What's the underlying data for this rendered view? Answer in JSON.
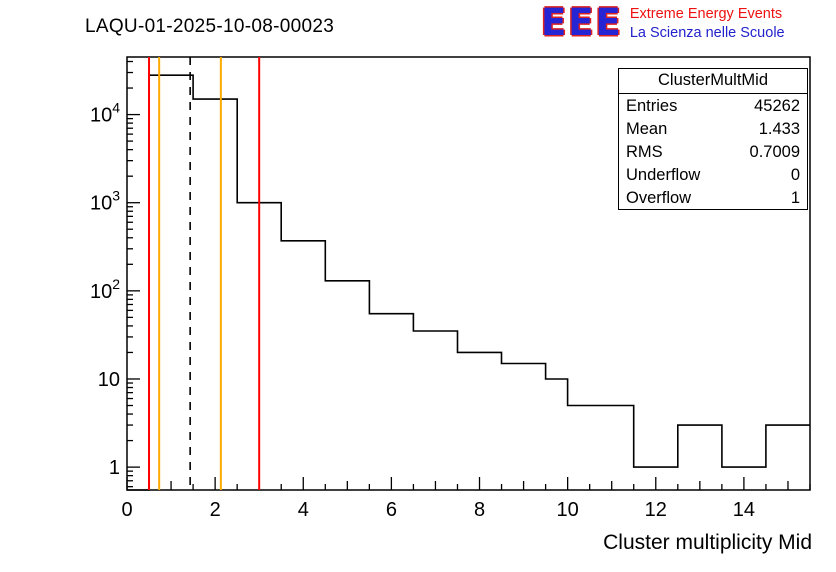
{
  "plot": {
    "title": "LAQU-01-2025-10-08-00023",
    "xlabel": "Cluster multiplicity Mid"
  },
  "logo": {
    "acronym": "EEE",
    "line1": "Extreme Energy Events",
    "line2": "La Scienza nelle Scuole",
    "acronym_color": "#2525d4",
    "acronym_outline_color": "#dd2222",
    "line1_color": "#ee1111",
    "line2_color": "#2222cc"
  },
  "stats": {
    "title": "ClusterMultMid",
    "rows": [
      {
        "label": "Entries",
        "value": "45262"
      },
      {
        "label": "Mean",
        "value": "1.433"
      },
      {
        "label": "RMS",
        "value": "0.7009"
      },
      {
        "label": "Underflow",
        "value": "0"
      },
      {
        "label": "Overflow",
        "value": "1"
      }
    ]
  },
  "chart_data": {
    "type": "bar",
    "subtype": "step-histogram",
    "title": "LAQU-01-2025-10-08-00023",
    "xlabel": "Cluster multiplicity Mid",
    "ylabel": "",
    "y_scale": "log",
    "x_range": [
      0,
      15.5
    ],
    "y_range": [
      0.55,
      45000
    ],
    "bin_start": 0,
    "bin_width": 0.5,
    "counts": [
      0,
      28000,
      28000,
      15000,
      15000,
      1000,
      1000,
      370,
      370,
      130,
      130,
      55,
      55,
      35,
      35,
      20,
      20,
      15,
      15,
      10,
      5,
      5,
      5,
      1,
      1,
      3,
      3,
      1,
      1,
      3,
      3
    ],
    "x_ticks": [
      0,
      2,
      4,
      6,
      8,
      10,
      12,
      14
    ],
    "y_ticks": [
      1,
      10,
      100,
      1000,
      10000
    ],
    "grid": false,
    "line_color": "#000000",
    "markers": [
      {
        "name": "red-line-low",
        "x": 0.5,
        "color": "#ff0000",
        "style": "solid"
      },
      {
        "name": "orange-line-low",
        "x": 0.73,
        "color": "#ffaa00",
        "style": "solid"
      },
      {
        "name": "mean-line",
        "x": 1.433,
        "color": "#000000",
        "style": "dashed"
      },
      {
        "name": "orange-line-high",
        "x": 2.13,
        "color": "#ffaa00",
        "style": "solid"
      },
      {
        "name": "red-line-high",
        "x": 3.0,
        "color": "#ff0000",
        "style": "solid"
      }
    ]
  }
}
